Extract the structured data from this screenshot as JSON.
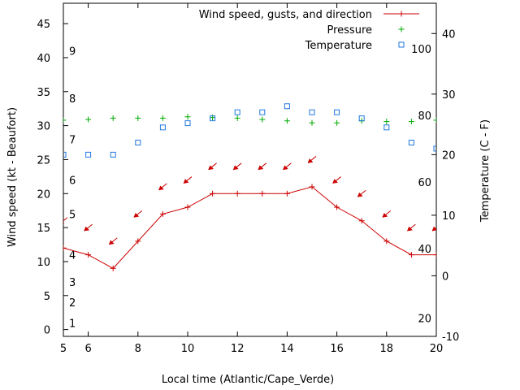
{
  "chart_data": {
    "type": "line",
    "xlabel": "Local time (Atlantic/Cape_Verde)",
    "ylabel": "Wind speed (kt - Beaufort)",
    "y2label": "Temperature (C - F)",
    "xlim": [
      5,
      20
    ],
    "ylim": [
      -1,
      48
    ],
    "y2lim": [
      -10,
      45
    ],
    "x_ticks": [
      6,
      8,
      10,
      12,
      14,
      16,
      18,
      20
    ],
    "y_ticks": [
      0,
      5,
      10,
      15,
      20,
      25,
      30,
      35,
      40,
      45
    ],
    "y2_ticks": [
      -10,
      0,
      10,
      20,
      30,
      40
    ],
    "beaufort_labels": [
      {
        "label": "1",
        "y": 1
      },
      {
        "label": "2",
        "y": 4
      },
      {
        "label": "3",
        "y": 7
      },
      {
        "label": "4",
        "y": 11
      },
      {
        "label": "5",
        "y": 17
      },
      {
        "label": "6",
        "y": 22
      },
      {
        "label": "7",
        "y": 28
      },
      {
        "label": "8",
        "y": 34
      },
      {
        "label": "9",
        "y": 41
      }
    ],
    "fahrenheit_labels": [
      {
        "label": "20",
        "y": -7
      },
      {
        "label": "40",
        "y": 4.5
      },
      {
        "label": "60",
        "y": 15.5
      },
      {
        "label": "80",
        "y": 26.5
      },
      {
        "label": "100",
        "y": 37.5
      }
    ],
    "legend": {
      "placement": "top-right"
    },
    "series": [
      {
        "name": "Wind speed, gusts, and direction",
        "axis": "y",
        "style": "line-plus",
        "color": "#cc0000",
        "x": [
          5,
          6,
          7,
          8,
          9,
          10,
          11,
          12,
          13,
          14,
          15,
          16,
          17,
          18,
          19,
          20
        ],
        "y": [
          12,
          11,
          9,
          13,
          17,
          18,
          20,
          20,
          20,
          20,
          21,
          18,
          16,
          13,
          11,
          11
        ]
      },
      {
        "name": "Pressure",
        "axis": "y",
        "style": "plus",
        "color": "#00aa00",
        "x": [
          5,
          6,
          7,
          8,
          9,
          10,
          11,
          12,
          13,
          14,
          15,
          16,
          17,
          18,
          19,
          20
        ],
        "y": [
          30.8,
          30.9,
          31.1,
          31.1,
          31.1,
          31.3,
          31.2,
          31.1,
          30.9,
          30.7,
          30.4,
          30.4,
          30.7,
          30.6,
          30.6,
          30.8
        ]
      },
      {
        "name": "Temperature",
        "axis": "y2",
        "style": "square",
        "color": "#1f77e0",
        "x": [
          5,
          6,
          7,
          8,
          9,
          10,
          11,
          12,
          13,
          14,
          15,
          16,
          17,
          18,
          19,
          20
        ],
        "y": [
          20,
          20,
          20,
          22,
          24.5,
          25.2,
          26,
          27,
          27,
          28,
          27,
          27,
          26,
          24.5,
          22,
          21
        ]
      }
    ],
    "wind_direction_arrows": {
      "color": "#cc0000",
      "x": [
        5,
        6,
        7,
        8,
        9,
        10,
        11,
        12,
        13,
        14,
        15,
        16,
        17,
        18,
        19,
        20
      ],
      "y": [
        16,
        15,
        13,
        17,
        21,
        22,
        24,
        24,
        24,
        24,
        25,
        22,
        20,
        17,
        15,
        15
      ]
    }
  }
}
